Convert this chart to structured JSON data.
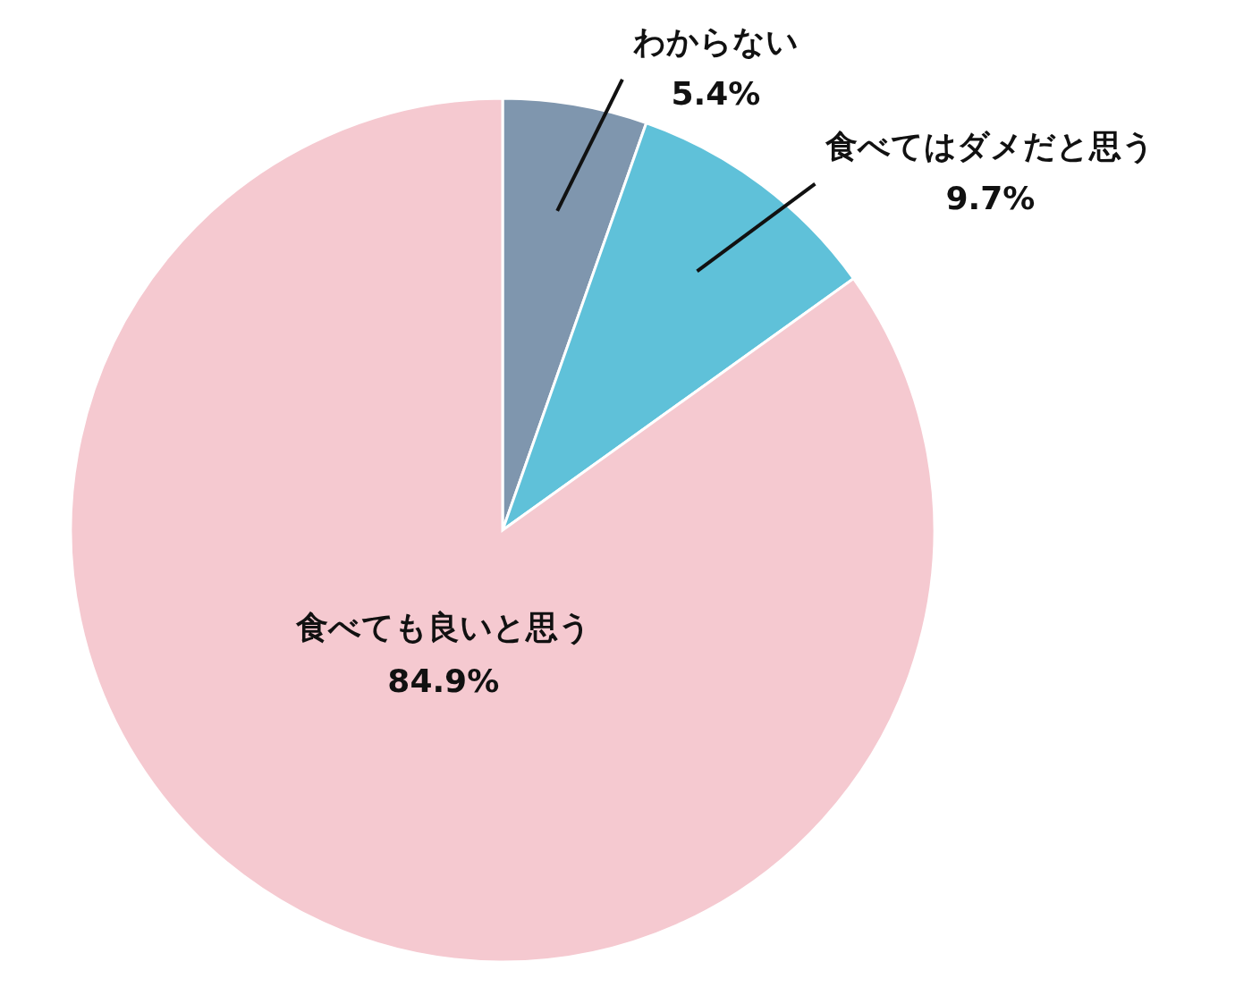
{
  "chart_data": {
    "type": "pie",
    "categories": [
      "わからない",
      "食べてはダメだと思う",
      "食べても良いと思う"
    ],
    "values": [
      5.4,
      9.7,
      84.9
    ],
    "colors": [
      "#7f96ae",
      "#5fc1d9",
      "#f5c9d0"
    ],
    "value_labels": [
      "5.4%",
      "9.7%",
      "84.9%"
    ]
  }
}
